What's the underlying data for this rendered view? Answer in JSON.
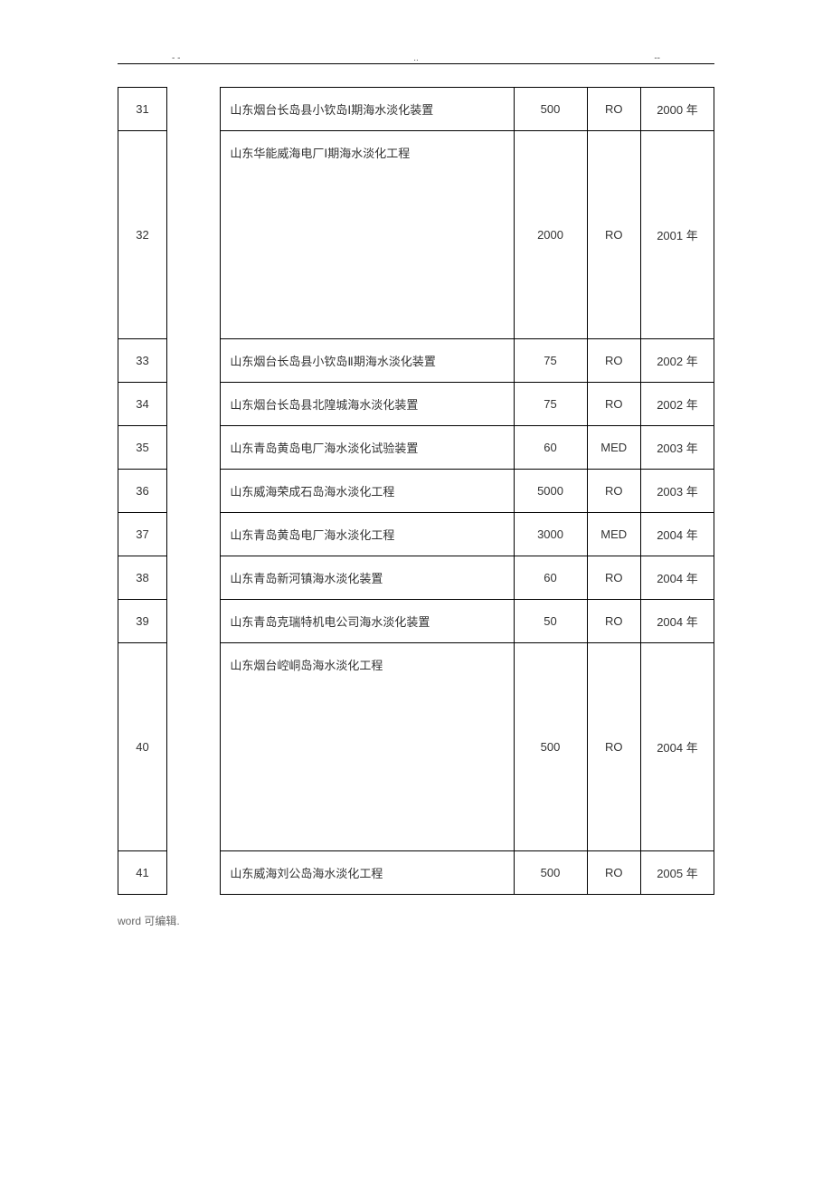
{
  "header": {
    "mark_left": "- -",
    "mark_center": "..",
    "mark_right": "--"
  },
  "footer": {
    "text": "word  可编辑."
  },
  "table": {
    "columns": {
      "idx_width": 50,
      "gap_width": 55,
      "desc_width": 300,
      "val_width": 75,
      "type_width": 55,
      "year_width": 75
    },
    "rows": [
      {
        "idx": "31",
        "desc": "山东烟台长岛县小钦岛Ⅰ期海水淡化装置",
        "val": "500",
        "type": "RO",
        "year": "2000 年",
        "tall": false
      },
      {
        "idx": "32",
        "desc": "山东华能威海电厂Ⅰ期海水淡化工程",
        "val": "2000",
        "type": "RO",
        "year": "2001 年",
        "tall": true
      },
      {
        "idx": "33",
        "desc": "山东烟台长岛县小钦岛Ⅱ期海水淡化装置",
        "val": "75",
        "type": "RO",
        "year": "2002 年",
        "tall": false
      },
      {
        "idx": "34",
        "desc": "山东烟台长岛县北隍城海水淡化装置",
        "val": "75",
        "type": "RO",
        "year": "2002 年",
        "tall": false
      },
      {
        "idx": "35",
        "desc": "山东青岛黄岛电厂海水淡化试验装置",
        "val": "60",
        "type": "MED",
        "year": "2003 年",
        "tall": false
      },
      {
        "idx": "36",
        "desc": "山东威海荣成石岛海水淡化工程",
        "val": "5000",
        "type": "RO",
        "year": "2003 年",
        "tall": false
      },
      {
        "idx": "37",
        "desc": "山东青岛黄岛电厂海水淡化工程",
        "val": "3000",
        "type": "MED",
        "year": "2004 年",
        "tall": false
      },
      {
        "idx": "38",
        "desc": "山东青岛新河镇海水淡化装置",
        "val": "60",
        "type": "RO",
        "year": "2004 年",
        "tall": false
      },
      {
        "idx": "39",
        "desc": "山东青岛克瑞特机电公司海水淡化装置",
        "val": "50",
        "type": "RO",
        "year": "2004 年",
        "tall": false
      },
      {
        "idx": "40",
        "desc": "山东烟台崆峒岛海水淡化工程",
        "val": "500",
        "type": "RO",
        "year": "2004 年",
        "tall": true
      },
      {
        "idx": "41",
        "desc": "山东威海刘公岛海水淡化工程",
        "val": "500",
        "type": "RO",
        "year": "2005 年",
        "tall": false
      }
    ]
  }
}
